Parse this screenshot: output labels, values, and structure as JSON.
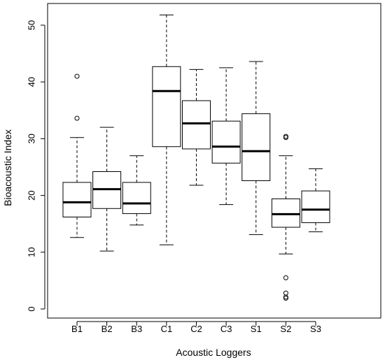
{
  "chart_data": {
    "type": "boxplot",
    "xlabel": "Acoustic Loggers",
    "ylabel": "Bioacoustic Index",
    "ylim": [
      0,
      53
    ],
    "yticks": [
      0,
      10,
      20,
      30,
      40,
      50
    ],
    "grid": false,
    "legend": "none",
    "categories": [
      "B1",
      "B2",
      "B3",
      "C1",
      "C2",
      "C3",
      "S1",
      "S2",
      "S3"
    ],
    "boxes": [
      {
        "label": "B1",
        "whisker_low": 12.6,
        "q1": 16.2,
        "median": 18.8,
        "q3": 22.3,
        "whisker_high": 30.2,
        "outliers": [
          33.6,
          41.0
        ]
      },
      {
        "label": "B2",
        "whisker_low": 10.2,
        "q1": 17.7,
        "median": 21.1,
        "q3": 24.2,
        "whisker_high": 32.0,
        "outliers": []
      },
      {
        "label": "B3",
        "whisker_low": 14.8,
        "q1": 16.8,
        "median": 18.6,
        "q3": 22.3,
        "whisker_high": 27.0,
        "outliers": []
      },
      {
        "label": "C1",
        "whisker_low": 11.3,
        "q1": 28.6,
        "median": 38.4,
        "q3": 42.7,
        "whisker_high": 51.8,
        "outliers": []
      },
      {
        "label": "C2",
        "whisker_low": 21.8,
        "q1": 28.2,
        "median": 32.7,
        "q3": 36.7,
        "whisker_high": 42.2,
        "outliers": []
      },
      {
        "label": "C3",
        "whisker_low": 18.4,
        "q1": 25.7,
        "median": 28.6,
        "q3": 33.1,
        "whisker_high": 42.5,
        "outliers": []
      },
      {
        "label": "S1",
        "whisker_low": 13.1,
        "q1": 22.6,
        "median": 27.8,
        "q3": 34.4,
        "whisker_high": 43.6,
        "outliers": []
      },
      {
        "label": "S2",
        "whisker_low": 9.7,
        "q1": 14.4,
        "median": 16.7,
        "q3": 19.4,
        "whisker_high": 27.0,
        "outliers": [
          30.2,
          30.4,
          5.5,
          2.8,
          2.1,
          1.9
        ]
      },
      {
        "label": "S3",
        "whisker_low": 13.6,
        "q1": 15.2,
        "median": 17.5,
        "q3": 20.8,
        "whisker_high": 24.7,
        "outliers": []
      }
    ]
  }
}
